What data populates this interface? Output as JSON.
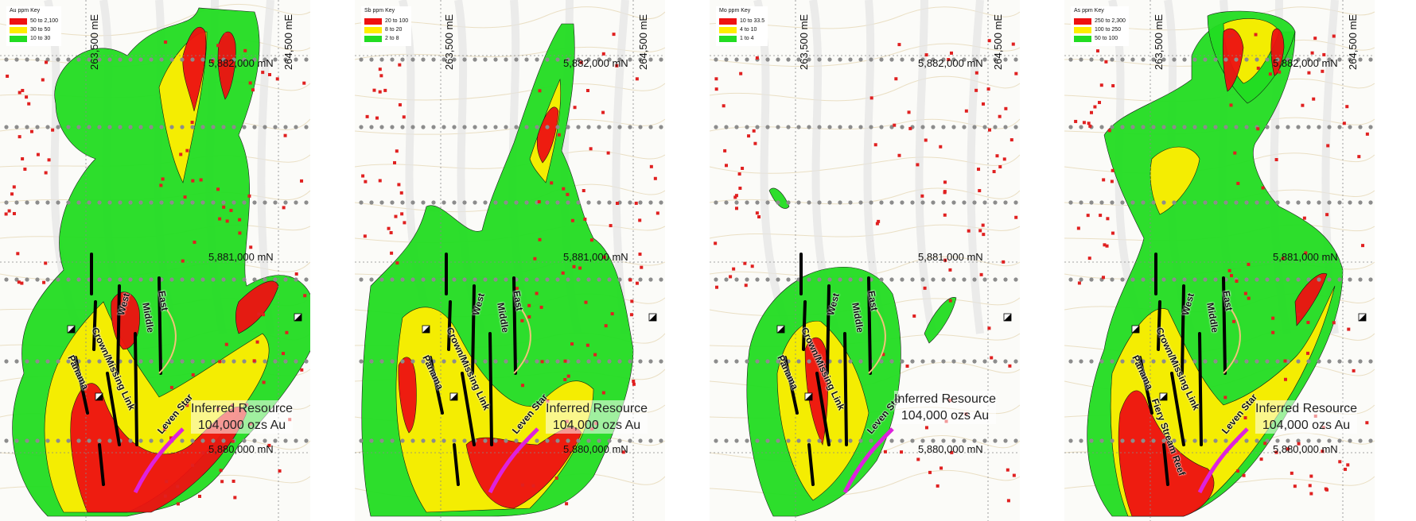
{
  "panels": [
    {
      "key_title": "Au ppm Key",
      "key_entries": [
        {
          "label": "50 to 2,100",
          "color": "#ee1111"
        },
        {
          "label": "30 to 50",
          "color": "#ffee00"
        },
        {
          "label": "10 to 30",
          "color": "#22dd22"
        }
      ],
      "northing_top": "5,882,000 mN",
      "northing_mid": "5,881,000 mN",
      "northing_bottom": "5,880,000 mN",
      "easting_left": "263,500 mE",
      "easting_right": "264,500 mE",
      "lodes": {
        "west": "West",
        "middle": "Middle",
        "east": "East",
        "panama": "Panama",
        "crown": "Crown/Missing Link",
        "leven": "Leven Star"
      },
      "resource_line1": "Inferred Resource",
      "resource_line2": "104,000 ozs Au"
    },
    {
      "key_title": "Sb ppm Key",
      "key_entries": [
        {
          "label": "20 to 100",
          "color": "#ee1111"
        },
        {
          "label": "8 to 20",
          "color": "#ffee00"
        },
        {
          "label": "2 to 8",
          "color": "#22dd22"
        }
      ],
      "northing_top": "5,882,000 mN",
      "northing_mid": "5,881,000 mN",
      "northing_bottom": "5,880,000 mN",
      "easting_left": "263,500 mE",
      "easting_right": "264,500 mE",
      "lodes": {
        "west": "West",
        "middle": "Middle",
        "east": "East",
        "panama": "Panama",
        "crown": "Crown/Missing Link",
        "leven": "Leven Star"
      },
      "resource_line1": "Inferred Resource",
      "resource_line2": "104,000 ozs Au"
    },
    {
      "key_title": "Mo ppm Key",
      "key_entries": [
        {
          "label": "10 to 33.5",
          "color": "#ee1111"
        },
        {
          "label": "4 to 10",
          "color": "#ffee00"
        },
        {
          "label": "1 to 4",
          "color": "#22dd22"
        }
      ],
      "northing_top": "5,882,000 mN",
      "northing_mid": "5,881,000 mN",
      "northing_bottom": "5,880,000 mN",
      "easting_left": "263,500 mE",
      "easting_right": "264,500 mE",
      "lodes": {
        "west": "West",
        "middle": "Middle",
        "east": "East",
        "panama": "Panama",
        "crown": "Crown/Missing Link",
        "leven": "Leven Star"
      },
      "resource_line1": "Inferred Resource",
      "resource_line2": "104,000 ozs Au"
    },
    {
      "key_title": "As ppm Key",
      "key_entries": [
        {
          "label": "250 to 2,300",
          "color": "#ee1111"
        },
        {
          "label": "100 to 250",
          "color": "#ffee00"
        },
        {
          "label": "50 to 100",
          "color": "#22dd22"
        }
      ],
      "northing_top": "5,882,000 mN",
      "northing_mid": "5,881,000 mN",
      "northing_bottom": "5,880,000 mN",
      "easting_left": "263,500 mE",
      "easting_right": "264,500 mE",
      "lodes": {
        "west": "West",
        "middle": "Middle",
        "east": "East",
        "panama": "Panama",
        "crown": "Crown/Missing Link",
        "leven": "Leven Star",
        "fiery": "Fiery Stream Reef"
      },
      "resource_line1": "Inferred Resource",
      "resource_line2": "104,000 ozs Au"
    }
  ]
}
